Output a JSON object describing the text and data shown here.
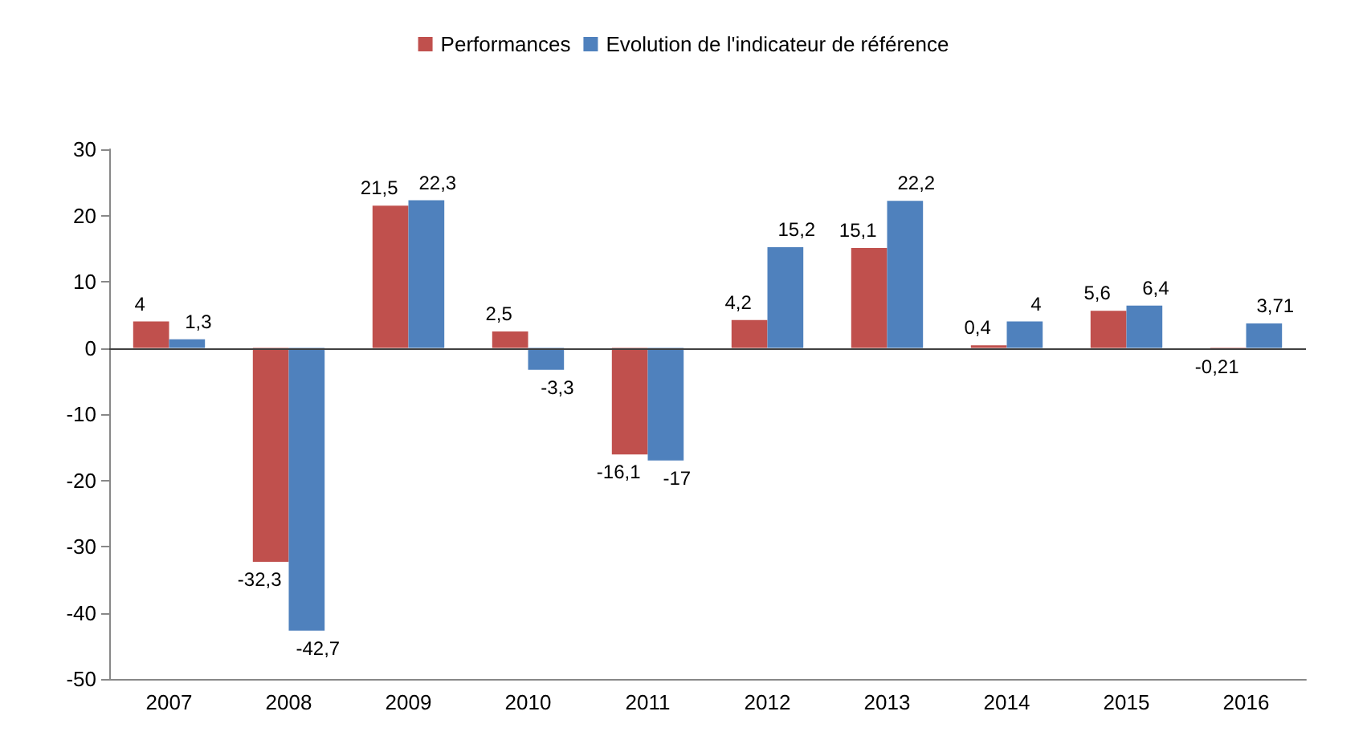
{
  "chart_data": {
    "type": "bar",
    "categories": [
      "2007",
      "2008",
      "2009",
      "2010",
      "2011",
      "2012",
      "2013",
      "2014",
      "2015",
      "2016"
    ],
    "series": [
      {
        "name": "Performances",
        "color": "#c0504d",
        "values": [
          4,
          -32.3,
          21.5,
          2.5,
          -16.1,
          4.2,
          15.1,
          0.4,
          5.6,
          -0.21
        ],
        "value_labels": [
          "4",
          "-32,3",
          "21,5",
          "2,5",
          "-16,1",
          "4,2",
          "15,1",
          "0,4",
          "5,6",
          "-0,21"
        ]
      },
      {
        "name": "Evolution de l'indicateur de référence",
        "color": "#4f81bd",
        "values": [
          1.3,
          -42.7,
          22.3,
          -3.3,
          -17,
          15.2,
          22.2,
          4,
          6.4,
          3.71
        ],
        "value_labels": [
          "1,3",
          "-42,7",
          "22,3",
          "-3,3",
          "-17",
          "15,2",
          "22,2",
          "4",
          "6,4",
          "3,71"
        ]
      }
    ],
    "ylim": [
      -50,
      30
    ],
    "yticks": [
      -50,
      -40,
      -30,
      -20,
      -10,
      0,
      10,
      20,
      30
    ],
    "grid": false,
    "legend": "top",
    "ref_lines": [
      {
        "axis": "y",
        "value": 0,
        "color": "#404040"
      }
    ]
  }
}
